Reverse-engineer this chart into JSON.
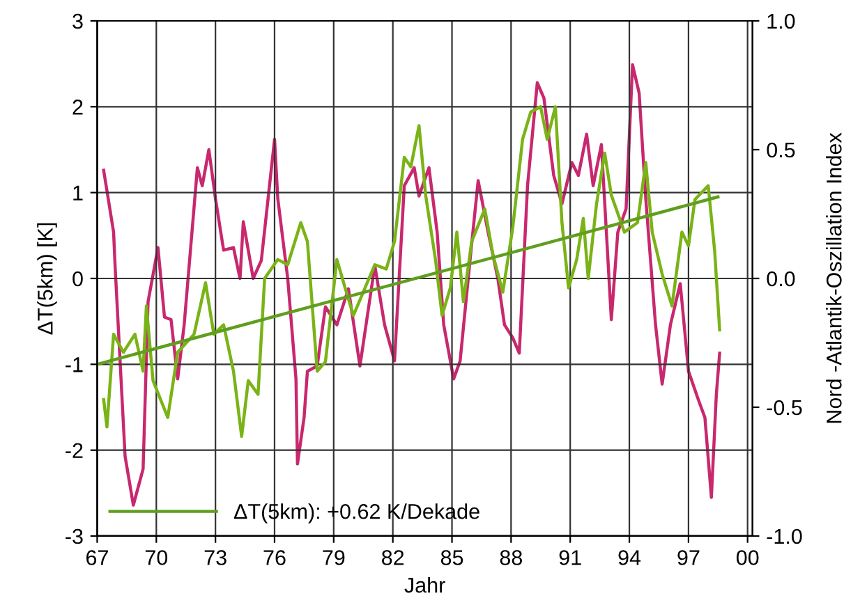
{
  "chart_data": {
    "type": "line",
    "xlabel": "Jahr",
    "ylabel": "ΔT(5km) [K]",
    "y2label": "Nord -Atlantik-Oszillation Index",
    "xlim": [
      "1967-01",
      "2000-04"
    ],
    "xticks": [
      {
        "value": "1967",
        "label": "67"
      },
      {
        "value": "1970",
        "label": "70"
      },
      {
        "value": "1973",
        "label": "73"
      },
      {
        "value": "1976",
        "label": "76"
      },
      {
        "value": "1979",
        "label": "79"
      },
      {
        "value": "1982",
        "label": "82"
      },
      {
        "value": "1985",
        "label": "85"
      },
      {
        "value": "1988",
        "label": "88"
      },
      {
        "value": "1991",
        "label": "91"
      },
      {
        "value": "1994",
        "label": "94"
      },
      {
        "value": "1997",
        "label": "97"
      },
      {
        "value": "2000",
        "label": "00"
      }
    ],
    "ylim": [
      -3,
      3
    ],
    "yticks": [
      -3,
      -2,
      -1,
      0,
      1,
      2,
      3
    ],
    "y2lim": [
      -1,
      1
    ],
    "y2ticks": [
      {
        "value": -1,
        "label": "-1.0"
      },
      {
        "value": -0.5,
        "label": "-0.5"
      },
      {
        "value": 0,
        "label": "0.0"
      },
      {
        "value": 0.5,
        "label": "0.5"
      },
      {
        "value": 1,
        "label": "1.0"
      }
    ],
    "grid": true,
    "legend": "bottom left",
    "series": [
      {
        "axis": "y2",
        "color": "#c8286e",
        "x": [
          "1967-05",
          "1967-11",
          "1967-12",
          "1968-06",
          "1968-11",
          "1969-05",
          "1969-08",
          "1970-02",
          "1970-06",
          "1970-10",
          "1971-02",
          "1971-06",
          "1972-02",
          "1972-05",
          "1972-09",
          "1973-01",
          "1973-06",
          "1973-12",
          "1974-04",
          "1974-06",
          "1974-12",
          "1975-05",
          "1976-01",
          "1976-03",
          "1976-09",
          "1977-02",
          "1977-03",
          "1977-07",
          "1977-09",
          "1978-03",
          "1978-08",
          "1979-03",
          "1979-10",
          "1980-05",
          "1981-02",
          "1981-08",
          "1982-02",
          "1982-08",
          "1983-02",
          "1983-05",
          "1983-11",
          "1984-04",
          "1984-08",
          "1985-02",
          "1985-06",
          "1985-12",
          "1986-05",
          "1986-11",
          "1987-05",
          "1987-09",
          "1988-02",
          "1988-06",
          "1988-11",
          "1989-05",
          "1989-09",
          "1990-03",
          "1990-08",
          "1991-02",
          "1991-06",
          "1991-11",
          "1992-03",
          "1992-08",
          "1993-02",
          "1993-06",
          "1993-11",
          "1994-03",
          "1994-07",
          "1994-11",
          "1995-05",
          "1995-09",
          "1996-02",
          "1996-08",
          "1997-01",
          "1997-07",
          "1997-11",
          "1998-03",
          "1998-06",
          "1998-08"
        ],
        "values": [
          0.42,
          0.18,
          0.04,
          -0.69,
          -0.88,
          -0.74,
          -0.09,
          0.12,
          -0.15,
          -0.16,
          -0.39,
          -0.18,
          0.43,
          0.36,
          0.5,
          0.31,
          0.11,
          0.12,
          0.0,
          0.22,
          0.0,
          0.07,
          0.54,
          0.31,
          0.0,
          -0.39,
          -0.72,
          -0.54,
          -0.36,
          -0.34,
          -0.11,
          -0.18,
          -0.04,
          -0.34,
          0.05,
          -0.18,
          -0.32,
          0.36,
          0.43,
          0.32,
          0.43,
          0.18,
          -0.18,
          -0.39,
          -0.32,
          0.07,
          0.38,
          0.18,
          0.0,
          -0.18,
          -0.23,
          -0.29,
          0.36,
          0.76,
          0.7,
          0.4,
          0.29,
          0.45,
          0.4,
          0.56,
          0.36,
          0.52,
          -0.16,
          0.18,
          0.27,
          0.83,
          0.72,
          0.31,
          -0.18,
          -0.41,
          -0.18,
          -0.02,
          -0.36,
          -0.47,
          -0.54,
          -0.85,
          -0.45,
          -0.29
        ]
      },
      {
        "color": "#7ab317",
        "x": [
          "1967-05",
          "1967-07",
          "1967-11",
          "1968-05",
          "1968-12",
          "1969-05",
          "1969-07",
          "1969-11",
          "1970-08",
          "1971-02",
          "1971-12",
          "1972-07",
          "1972-12",
          "1973-06",
          "1973-12",
          "1974-05",
          "1974-09",
          "1975-03",
          "1975-07",
          "1976-03",
          "1976-09",
          "1977-05",
          "1977-09",
          "1978-03",
          "1978-08",
          "1979-03",
          "1979-08",
          "1980-01",
          "1981-02",
          "1981-09",
          "1982-02",
          "1982-08",
          "1982-12",
          "1983-05",
          "1983-09",
          "1984-03",
          "1984-07",
          "1984-12",
          "1985-04",
          "1985-08",
          "1986-01",
          "1986-09",
          "1987-02",
          "1987-08",
          "1988-02",
          "1988-08",
          "1989-01",
          "1989-07",
          "1989-11",
          "1990-04",
          "1990-08",
          "1990-12",
          "1991-05",
          "1991-09",
          "1991-12",
          "1992-05",
          "1992-10",
          "1993-02",
          "1993-10",
          "1994-06",
          "1994-11",
          "1995-03",
          "1995-09",
          "1996-03",
          "1996-09",
          "1997-01",
          "1997-05",
          "1998-01",
          "1998-05",
          "1998-08"
        ],
        "values": [
          -1.41,
          -1.73,
          -0.65,
          -0.86,
          -0.65,
          -1.08,
          -0.32,
          -1.19,
          -1.62,
          -0.86,
          -0.65,
          -0.05,
          -0.65,
          -0.54,
          -1.08,
          -1.84,
          -1.19,
          -1.35,
          0.0,
          0.22,
          0.16,
          0.65,
          0.43,
          -1.08,
          -0.97,
          0.22,
          -0.11,
          -0.43,
          0.16,
          0.11,
          0.43,
          1.41,
          1.3,
          1.78,
          0.97,
          0.22,
          -0.43,
          -0.11,
          0.54,
          -0.27,
          0.43,
          0.81,
          0.27,
          -0.16,
          0.59,
          1.62,
          1.94,
          2.0,
          1.62,
          2.0,
          0.65,
          -0.11,
          0.22,
          0.7,
          0.0,
          0.86,
          1.46,
          0.97,
          0.54,
          0.65,
          1.35,
          0.54,
          0.05,
          -0.32,
          0.54,
          0.38,
          0.92,
          1.08,
          0.32,
          -0.6
        ]
      },
      {
        "name": "ΔT(5km): +0.62 K/Dekade",
        "color": "#5f9e1e",
        "x": [
          "1967-01",
          "1998-07"
        ],
        "values": [
          -1,
          0.95
        ]
      }
    ]
  }
}
